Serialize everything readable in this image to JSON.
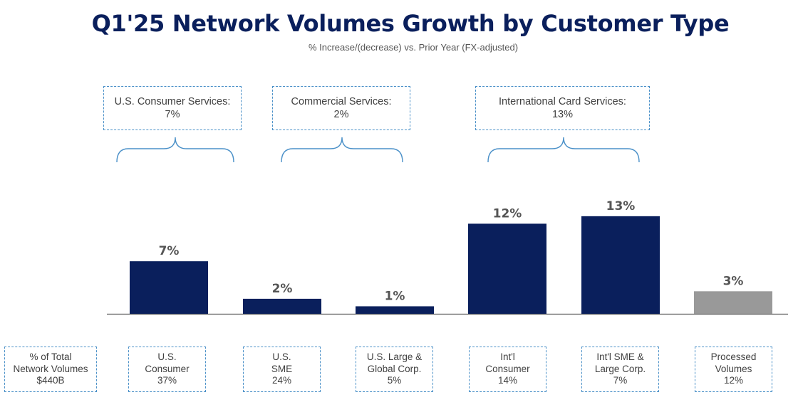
{
  "title": "Q1'25 Network Volumes Growth by Customer Type",
  "subtitle": "% Increase/(decrease) vs. Prior Year (FX-adjusted)",
  "segments": [
    {
      "name": "U.S. Consumer Services:",
      "value": "7%"
    },
    {
      "name": "Commercial Services:",
      "value": "2%"
    },
    {
      "name": "International Card Services:",
      "value": "13%"
    }
  ],
  "share_header": {
    "line1": "% of Total",
    "line2": "Network Volumes",
    "line3": "$440B"
  },
  "categories": [
    {
      "line1": "U.S.",
      "line2": "Consumer",
      "share": "37%"
    },
    {
      "line1": "U.S.",
      "line2": "SME",
      "share": "24%"
    },
    {
      "line1": "U.S. Large &",
      "line2": "Global Corp.",
      "share": "5%"
    },
    {
      "line1": "Int'l",
      "line2": "Consumer",
      "share": "14%"
    },
    {
      "line1": "Int'l SME &",
      "line2": "Large Corp.",
      "share": "7%"
    },
    {
      "line1": "Processed",
      "line2": "Volumes",
      "share": "12%"
    }
  ],
  "colors": {
    "primary": "#0a1f5c",
    "processed": "#999999",
    "bracket": "#4a90c8"
  },
  "chart_data": {
    "type": "bar",
    "categories": [
      "U.S. Consumer",
      "U.S. SME",
      "U.S. Large & Global Corp.",
      "Int'l Consumer",
      "Int'l SME & Large Corp.",
      "Processed Volumes"
    ],
    "values": [
      7,
      2,
      1,
      12,
      13,
      3
    ],
    "value_labels": [
      "7%",
      "2%",
      "1%",
      "12%",
      "13%",
      "3%"
    ],
    "unit": "%",
    "grid": false,
    "legend": "none"
  }
}
